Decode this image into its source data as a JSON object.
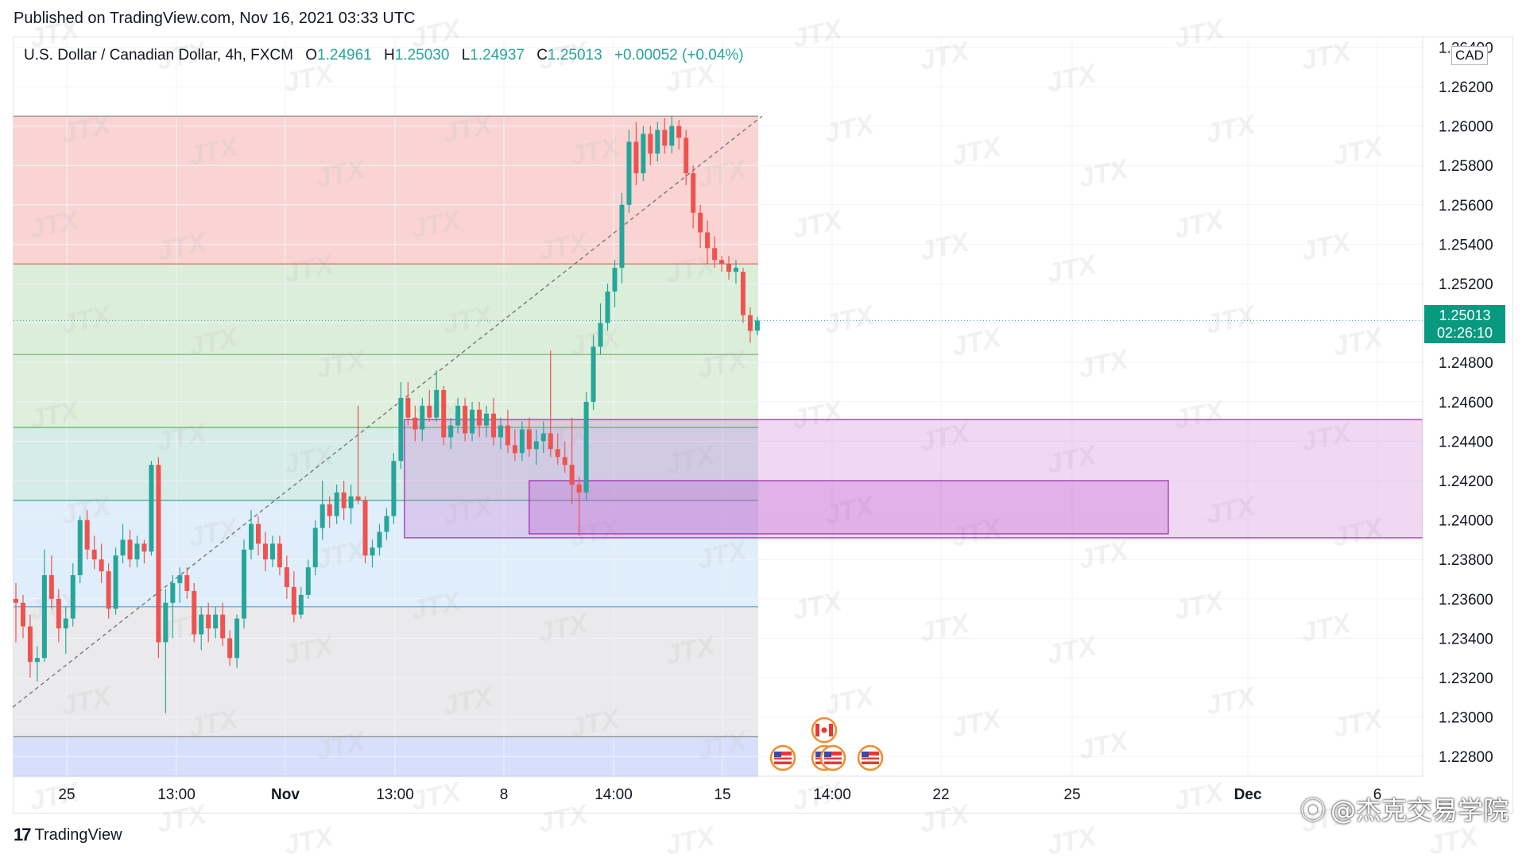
{
  "header": {
    "published": "Published on TradingView.com, Nov 16, 2021 03:33 UTC"
  },
  "legend": {
    "symbol": "U.S. Dollar / Canadian Dollar, 4h, FXCM",
    "open_label": "O",
    "open": "1.24961",
    "high_label": "H",
    "high": "1.25030",
    "low_label": "L",
    "low": "1.24937",
    "close_label": "C",
    "close": "1.25013",
    "change": "+0.00052 (+0.04%)"
  },
  "price_tag": {
    "price": "1.25013",
    "countdown": "02:26:10"
  },
  "currency_label": "CAD",
  "footer": {
    "brand": "TradingView",
    "logo_glyph": "17"
  },
  "watermark": {
    "text": "JTX",
    "weibo": "@杰克交易学院"
  },
  "chart_data": {
    "type": "candlestick",
    "symbol": "USDCAD",
    "timeframe": "4h",
    "ylim": [
      1.227,
      1.2645
    ],
    "price_ticks": [
      "1.26400",
      "1.26200",
      "1.26000",
      "1.25800",
      "1.25600",
      "1.25400",
      "1.25200",
      "1.25000",
      "1.24800",
      "1.24600",
      "1.24400",
      "1.24200",
      "1.24000",
      "1.23800",
      "1.23600",
      "1.23400",
      "1.23200",
      "1.23000",
      "1.22800"
    ],
    "time_ticks": [
      "25",
      "13:00",
      "Nov",
      "13:00",
      "8",
      "14:00",
      "15",
      "14:00",
      "22",
      "25",
      "Dec",
      "6"
    ],
    "last_price": 1.25013,
    "candles": [
      [
        1.236,
        1.2368,
        1.2338,
        1.2358
      ],
      [
        1.2358,
        1.2362,
        1.234,
        1.2346
      ],
      [
        1.2346,
        1.2352,
        1.232,
        1.2328
      ],
      [
        1.2328,
        1.2336,
        1.2318,
        1.233
      ],
      [
        1.233,
        1.2385,
        1.2328,
        1.2372
      ],
      [
        1.2372,
        1.2382,
        1.2355,
        1.236
      ],
      [
        1.236,
        1.2365,
        1.2338,
        1.2345
      ],
      [
        1.2345,
        1.2356,
        1.2332,
        1.235
      ],
      [
        1.235,
        1.2378,
        1.2346,
        1.2372
      ],
      [
        1.2372,
        1.2402,
        1.2368,
        1.24
      ],
      [
        1.24,
        1.2405,
        1.238,
        1.2385
      ],
      [
        1.2385,
        1.2392,
        1.2375,
        1.238
      ],
      [
        1.238,
        1.2388,
        1.2368,
        1.2374
      ],
      [
        1.2374,
        1.2378,
        1.235,
        1.2355
      ],
      [
        1.2355,
        1.2386,
        1.2352,
        1.2382
      ],
      [
        1.2382,
        1.2398,
        1.2378,
        1.239
      ],
      [
        1.239,
        1.2395,
        1.2376,
        1.238
      ],
      [
        1.238,
        1.2392,
        1.2376,
        1.2388
      ],
      [
        1.2388,
        1.239,
        1.2378,
        1.2384
      ],
      [
        1.2384,
        1.243,
        1.2382,
        1.2428
      ],
      [
        1.2428,
        1.2432,
        1.233,
        1.2338
      ],
      [
        1.2338,
        1.2365,
        1.2302,
        1.2358
      ],
      [
        1.2358,
        1.2372,
        1.234,
        1.2368
      ],
      [
        1.2368,
        1.2376,
        1.2358,
        1.2372
      ],
      [
        1.2372,
        1.2376,
        1.236,
        1.2364
      ],
      [
        1.2364,
        1.2368,
        1.2338,
        1.2342
      ],
      [
        1.2342,
        1.2356,
        1.2334,
        1.2352
      ],
      [
        1.2352,
        1.2358,
        1.2338,
        1.2345
      ],
      [
        1.2345,
        1.2356,
        1.234,
        1.2352
      ],
      [
        1.2352,
        1.2358,
        1.2336,
        1.234
      ],
      [
        1.234,
        1.2344,
        1.2326,
        1.233
      ],
      [
        1.233,
        1.2352,
        1.2325,
        1.235
      ],
      [
        1.235,
        1.239,
        1.2345,
        1.2385
      ],
      [
        1.2385,
        1.2405,
        1.238,
        1.2398
      ],
      [
        1.2398,
        1.2402,
        1.2382,
        1.2388
      ],
      [
        1.2388,
        1.2394,
        1.2374,
        1.238
      ],
      [
        1.238,
        1.2392,
        1.2376,
        1.2388
      ],
      [
        1.2388,
        1.2392,
        1.2372,
        1.2376
      ],
      [
        1.2376,
        1.2382,
        1.236,
        1.2366
      ],
      [
        1.2366,
        1.2374,
        1.2348,
        1.2352
      ],
      [
        1.2352,
        1.2366,
        1.235,
        1.2362
      ],
      [
        1.2362,
        1.238,
        1.236,
        1.2376
      ],
      [
        1.2376,
        1.24,
        1.2372,
        1.2396
      ],
      [
        1.2396,
        1.242,
        1.239,
        1.2408
      ],
      [
        1.2408,
        1.2412,
        1.2396,
        1.2402
      ],
      [
        1.2402,
        1.2418,
        1.2398,
        1.2414
      ],
      [
        1.2414,
        1.242,
        1.24,
        1.2406
      ],
      [
        1.2406,
        1.2418,
        1.2398,
        1.2412
      ],
      [
        1.2412,
        1.2458,
        1.2408,
        1.241
      ],
      [
        1.241,
        1.2412,
        1.2378,
        1.2382
      ],
      [
        1.2382,
        1.239,
        1.2376,
        1.2386
      ],
      [
        1.2386,
        1.2398,
        1.2382,
        1.2394
      ],
      [
        1.2394,
        1.2406,
        1.239,
        1.2402
      ],
      [
        1.2402,
        1.2434,
        1.2398,
        1.243
      ],
      [
        1.243,
        1.247,
        1.2426,
        1.2462
      ],
      [
        1.2462,
        1.247,
        1.2448,
        1.2452
      ],
      [
        1.2452,
        1.2458,
        1.244,
        1.2446
      ],
      [
        1.2446,
        1.2462,
        1.244,
        1.2458
      ],
      [
        1.2458,
        1.2466,
        1.245,
        1.2452
      ],
      [
        1.2452,
        1.2476,
        1.245,
        1.2466
      ],
      [
        1.2466,
        1.2468,
        1.2438,
        1.2442
      ],
      [
        1.2442,
        1.2452,
        1.2436,
        1.2448
      ],
      [
        1.2448,
        1.2462,
        1.2444,
        1.2458
      ],
      [
        1.2458,
        1.2462,
        1.244,
        1.2444
      ],
      [
        1.2444,
        1.246,
        1.244,
        1.2456
      ],
      [
        1.2456,
        1.246,
        1.2442,
        1.2448
      ],
      [
        1.2448,
        1.2458,
        1.2442,
        1.2454
      ],
      [
        1.2454,
        1.2462,
        1.2438,
        1.2442
      ],
      [
        1.2442,
        1.2452,
        1.2436,
        1.2448
      ],
      [
        1.2448,
        1.2456,
        1.2434,
        1.2438
      ],
      [
        1.2438,
        1.2446,
        1.243,
        1.2434
      ],
      [
        1.2434,
        1.245,
        1.243,
        1.2446
      ],
      [
        1.2446,
        1.2452,
        1.2432,
        1.2436
      ],
      [
        1.2436,
        1.2446,
        1.2428,
        1.244
      ],
      [
        1.244,
        1.245,
        1.2434,
        1.2444
      ],
      [
        1.2444,
        1.2486,
        1.2432,
        1.2436
      ],
      [
        1.2436,
        1.2444,
        1.2428,
        1.2432
      ],
      [
        1.2432,
        1.244,
        1.2424,
        1.2428
      ],
      [
        1.2428,
        1.2452,
        1.2408,
        1.2418
      ],
      [
        1.2418,
        1.2422,
        1.2392,
        1.2414
      ],
      [
        1.2414,
        1.2465,
        1.241,
        1.246
      ],
      [
        1.246,
        1.2494,
        1.2456,
        1.2488
      ],
      [
        1.2488,
        1.251,
        1.2484,
        1.25
      ],
      [
        1.25,
        1.252,
        1.2496,
        1.2516
      ],
      [
        1.2516,
        1.2532,
        1.2508,
        1.2528
      ],
      [
        1.2528,
        1.2566,
        1.252,
        1.256
      ],
      [
        1.256,
        1.2598,
        1.2556,
        1.2592
      ],
      [
        1.2592,
        1.2602,
        1.257,
        1.2576
      ],
      [
        1.2576,
        1.26,
        1.2572,
        1.2596
      ],
      [
        1.2596,
        1.26,
        1.258,
        1.2586
      ],
      [
        1.2586,
        1.2602,
        1.2582,
        1.2598
      ],
      [
        1.2598,
        1.2604,
        1.2586,
        1.259
      ],
      [
        1.259,
        1.2605,
        1.2586,
        1.26
      ],
      [
        1.26,
        1.2603,
        1.2588,
        1.2594
      ],
      [
        1.2594,
        1.2598,
        1.257,
        1.2576
      ],
      [
        1.2576,
        1.258,
        1.2548,
        1.2556
      ],
      [
        1.2556,
        1.256,
        1.2538,
        1.2546
      ],
      [
        1.2546,
        1.2552,
        1.253,
        1.2538
      ],
      [
        1.2538,
        1.2544,
        1.2528,
        1.2532
      ],
      [
        1.2532,
        1.2534,
        1.2526,
        1.253
      ],
      [
        1.253,
        1.2534,
        1.2522,
        1.2526
      ],
      [
        1.2526,
        1.2532,
        1.252,
        1.2528
      ],
      [
        1.2526,
        1.2528,
        1.25,
        1.2504
      ],
      [
        1.2504,
        1.2508,
        1.249,
        1.2496
      ],
      [
        1.24961,
        1.2503,
        1.24937,
        1.25013
      ]
    ],
    "fibonacci": {
      "levels": [
        1.2605,
        1.253,
        1.2484,
        1.2447,
        1.241,
        1.2356,
        1.229,
        1.227
      ],
      "bands": [
        {
          "top": 1.2605,
          "bottom": 1.253,
          "color": "#f7c5c3"
        },
        {
          "top": 1.253,
          "bottom": 1.2484,
          "color": "#cfe8cd"
        },
        {
          "top": 1.2484,
          "bottom": 1.2447,
          "color": "#d3ead0"
        },
        {
          "top": 1.2447,
          "bottom": 1.241,
          "color": "#c7e6e2"
        },
        {
          "top": 1.241,
          "bottom": 1.2356,
          "color": "#d4e8f8"
        },
        {
          "top": 1.2356,
          "bottom": 1.229,
          "color": "#e3e3e6"
        },
        {
          "top": 1.229,
          "bottom": 1.227,
          "color": "#c9d4fb"
        }
      ],
      "line_colors": [
        "#8a8a8a",
        "#e05a5a",
        "#7cb86e",
        "#4caf50",
        "#2e9c8a",
        "#64a6d8",
        "#888888",
        "#6b79d8"
      ]
    },
    "trendline": {
      "from": [
        0,
        1.2305
      ],
      "to": [
        108,
        1.2605
      ]
    },
    "zones": [
      {
        "x0": 54.5,
        "top": 1.2451,
        "bottom": 1.2391,
        "color": "#c874d4"
      },
      {
        "x0": 72,
        "top": 1.242,
        "bottom": 1.2393,
        "color": "#b64fc8"
      }
    ],
    "events": [
      {
        "type": "flag-ca",
        "count": 1
      },
      {
        "type": "flag-us",
        "count": 4
      }
    ],
    "colors": {
      "up": "#26a69a",
      "down": "#ef5350",
      "last_price_line": "#26a69a"
    }
  }
}
